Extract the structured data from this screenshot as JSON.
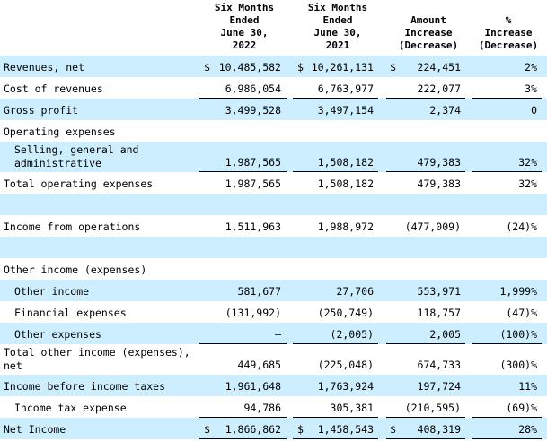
{
  "headers": [
    "Six Months\nEnded\nJune 30,\n2022",
    "Six Months\nEnded\nJune 30,\n2021",
    "Amount\nIncrease\n(Decrease)",
    "%\nIncrease\n(Decrease)"
  ],
  "rows": [
    {
      "label": "Revenues, net",
      "c1": "10,485,582",
      "c2": "10,261,131",
      "c3": "224,451",
      "c4": "2%",
      "d1": "$",
      "d2": "$",
      "d3": "$"
    },
    {
      "label": "Cost of revenues",
      "c1": "6,986,054",
      "c2": "6,763,977",
      "c3": "222,077",
      "c4": "3%"
    },
    {
      "label": "Gross profit",
      "c1": "3,499,528",
      "c2": "3,497,154",
      "c3": "2,374",
      "c4": "0"
    },
    {
      "label": "Operating expenses"
    },
    {
      "label": "Selling, general and\nadministrative",
      "c1": "1,987,565",
      "c2": "1,508,182",
      "c3": "479,383",
      "c4": "32%"
    },
    {
      "label": "Total operating expenses",
      "c1": "1,987,565",
      "c2": "1,508,182",
      "c3": "479,383",
      "c4": "32%"
    },
    {
      "label": ""
    },
    {
      "label": "Income from operations",
      "c1": "1,511,963",
      "c2": "1,988,972",
      "c3": "(477,009)",
      "c4": "(24)%"
    },
    {
      "label": ""
    },
    {
      "label": "Other income (expenses)"
    },
    {
      "label": "Other income",
      "c1": "581,677",
      "c2": "27,706",
      "c3": "553,971",
      "c4": "1,999%"
    },
    {
      "label": "Financial expenses",
      "c1": "(131,992)",
      "c2": "(250,749)",
      "c3": "118,757",
      "c4": "(47)%"
    },
    {
      "label": "Other expenses",
      "c1": "—",
      "c2": "(2,005)",
      "c3": "2,005",
      "c4": "(100)%"
    },
    {
      "label": "Total other income (expenses),\n net",
      "c1": "449,685",
      "c2": "(225,048)",
      "c3": "674,733",
      "c4": "(300)%"
    },
    {
      "label": "Income before income taxes",
      "c1": "1,961,648",
      "c2": "1,763,924",
      "c3": "197,724",
      "c4": "11%"
    },
    {
      "label": "Income tax expense",
      "c1": "94,786",
      "c2": "305,381",
      "c3": "(210,595)",
      "c4": "(69)%"
    },
    {
      "label": "Net Income",
      "c1": "1,866,862",
      "c2": "1,458,543",
      "c3": "408,319",
      "c4": "28%",
      "d1": "$",
      "d2": "$",
      "d3": "$"
    }
  ]
}
